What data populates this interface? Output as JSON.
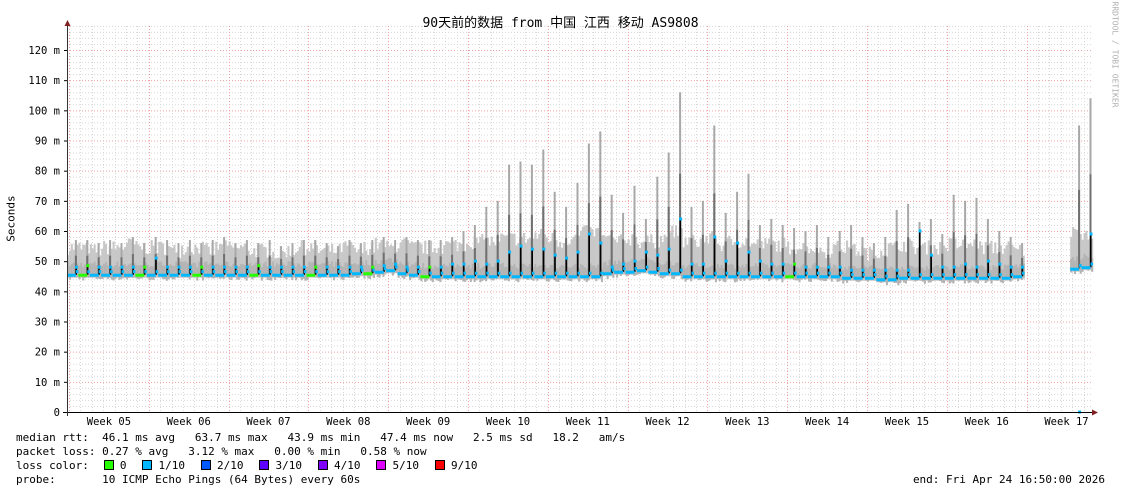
{
  "title": "90天前的数据 from  中国 江西 移动 AS9808",
  "credit": "RRDTOOL / TOBI OETIKER",
  "chart_data": {
    "type": "area",
    "title": "90天前的数据 from  中国 江西 移动 AS9808",
    "ylabel": "Seconds",
    "ylim": [
      0,
      0.128
    ],
    "y_ticks": [
      "0",
      "10 m",
      "20 m",
      "30 m",
      "40 m",
      "50 m",
      "60 m",
      "70 m",
      "80 m",
      "90 m",
      "100 m",
      "110 m",
      "120 m"
    ],
    "x_ticks": [
      "Week 05",
      "Week 06",
      "Week 07",
      "Week 08",
      "Week 09",
      "Week 10",
      "Week 11",
      "Week 12",
      "Week 13",
      "Week 14",
      "Week 15",
      "Week 16",
      "Week 17"
    ],
    "grid": true,
    "units_note": "per-day values in ms, 90 days, null = no data",
    "median_base": [
      45.5,
      45.5,
      45.5,
      45.5,
      45.5,
      45.5,
      45.5,
      45.5,
      45.5,
      45.5,
      45.5,
      45.5,
      45.5,
      45.5,
      45.5,
      45.5,
      45.5,
      45.5,
      45.5,
      45.5,
      45.5,
      45.5,
      45.5,
      45.5,
      45.5,
      46,
      46,
      46.5,
      47,
      46,
      45.5,
      45,
      45,
      45,
      45,
      45,
      45,
      45,
      45,
      45,
      45,
      45,
      45,
      45,
      45,
      45,
      45,
      46,
      46.5,
      46.5,
      47,
      46.5,
      46,
      46,
      45,
      45,
      45,
      45,
      45,
      45,
      45,
      45,
      45,
      45,
      45,
      45,
      45,
      45,
      44.5,
      44.5,
      44.5,
      44,
      44,
      44.5,
      44.5,
      44.5,
      44.5,
      44.5,
      44.5,
      44.5,
      44.5,
      44.5,
      44.5,
      45,
      null,
      null,
      null,
      null,
      47.5,
      48
    ],
    "median_peak": [
      48,
      48.5,
      48,
      48,
      48,
      48,
      48,
      51,
      48,
      48,
      48,
      48,
      48,
      48,
      48,
      48,
      48.5,
      48,
      48,
      48,
      48,
      48,
      48,
      48,
      48,
      48,
      48,
      48.5,
      49,
      48,
      48,
      48,
      48,
      49,
      49,
      50,
      49,
      50,
      53,
      55,
      54,
      54,
      52,
      51,
      53,
      59,
      56,
      48,
      49,
      50,
      53,
      52,
      54,
      64,
      49,
      49,
      58,
      50,
      56,
      53,
      50,
      49,
      49,
      49,
      48,
      48,
      48,
      48,
      47,
      47,
      47,
      47,
      47,
      47,
      60,
      52,
      48,
      48,
      49,
      48,
      50,
      49,
      48,
      48,
      47,
      null,
      null,
      null,
      null,
      59,
      59
    ],
    "max_peak": [
      57,
      57,
      56,
      57,
      56,
      58,
      56,
      58,
      57,
      56,
      57,
      56,
      57,
      58,
      56,
      57,
      56,
      57,
      55,
      56,
      57,
      57,
      56,
      55,
      57,
      56,
      57,
      58,
      57,
      58,
      57,
      57,
      57,
      58,
      60,
      62,
      68,
      70,
      82,
      83,
      82,
      87,
      73,
      68,
      76,
      89,
      93,
      72,
      66,
      75,
      64,
      78,
      86,
      106,
      68,
      70,
      95,
      66,
      73,
      79,
      62,
      64,
      62,
      61,
      60,
      62,
      58,
      60,
      62,
      58,
      56,
      58,
      67,
      69,
      63,
      64,
      59,
      72,
      70,
      71,
      64,
      60,
      58,
      56,
      null,
      null,
      null,
      null,
      95,
      104
    ],
    "smoke_top": [
      55,
      55,
      54,
      55,
      55,
      56,
      55,
      55,
      55,
      54,
      55,
      55,
      54,
      55,
      55,
      55,
      54,
      54,
      53,
      54,
      55,
      55,
      54,
      54,
      55,
      54,
      55,
      56,
      55,
      56,
      55,
      55,
      55,
      56,
      56,
      57,
      57,
      57,
      58,
      58,
      58,
      59,
      58,
      57,
      58,
      60,
      60,
      58,
      57,
      58,
      57,
      57,
      58,
      60,
      57,
      57,
      58,
      56,
      57,
      57,
      56,
      56,
      56,
      55,
      55,
      55,
      54,
      55,
      55,
      54,
      53,
      54,
      55,
      56,
      55,
      55,
      55,
      56,
      56,
      56,
      55,
      55,
      55,
      54,
      null,
      null,
      null,
      null,
      60,
      60
    ]
  },
  "legend": {
    "median_rtt_label": "median rtt:",
    "median_rtt": "46.1 ms avg   63.7 ms max   43.9 ms min   47.4 ms now   2.5 ms sd   18.2   am/s",
    "packet_loss_label": "packet loss:",
    "packet_loss": "0.27 % avg   3.12 % max   0.00 % min   0.58 % now",
    "loss_color_label": "loss color:",
    "loss_colors": [
      {
        "label": "0",
        "color": "#26ff00"
      },
      {
        "label": "1/10",
        "color": "#00b8ff"
      },
      {
        "label": "2/10",
        "color": "#0059ff"
      },
      {
        "label": "3/10",
        "color": "#5e00ff"
      },
      {
        "label": "4/10",
        "color": "#7e00ff"
      },
      {
        "label": "5/10",
        "color": "#dd00ff"
      },
      {
        "label": "9/10",
        "color": "#ff0000"
      }
    ],
    "probe_label": "probe:",
    "probe": "10 ICMP Echo Pings (64 Bytes) every 60s",
    "end": "end: Fri Apr 24 16:50:00 2026"
  }
}
